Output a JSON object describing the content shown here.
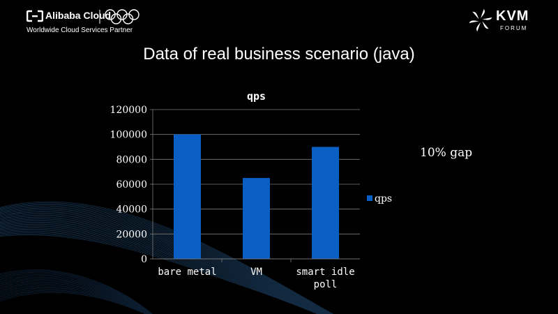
{
  "header": {
    "brand": "Alibaba Cloud",
    "partner": "Worldwide Cloud Services Partner",
    "event_name": "KVM",
    "event_sub": "FORUM"
  },
  "slide": {
    "title": "Data of  real business scenario (java)",
    "note": "10% gap"
  },
  "colors": {
    "bar": "#0a5fc4",
    "background": "#000000",
    "text": "#ffffff",
    "grid": "#7a7a7a"
  },
  "icons": [
    "alibaba-cloud-icon",
    "olympic-rings-icon",
    "kvm-forum-star-icon"
  ],
  "chart_data": {
    "type": "bar",
    "title": "qps",
    "categories": [
      "bare metal",
      "VM",
      "smart idle poll"
    ],
    "category_lines": [
      [
        "bare metal"
      ],
      [
        "VM"
      ],
      [
        "smart idle",
        "poll"
      ]
    ],
    "series": [
      {
        "name": "qps",
        "values": [
          100000,
          65000,
          90000
        ]
      }
    ],
    "ylim": [
      0,
      120000
    ],
    "yticks": [
      0,
      20000,
      40000,
      60000,
      80000,
      100000,
      120000
    ],
    "grid": true,
    "legend": "right"
  }
}
